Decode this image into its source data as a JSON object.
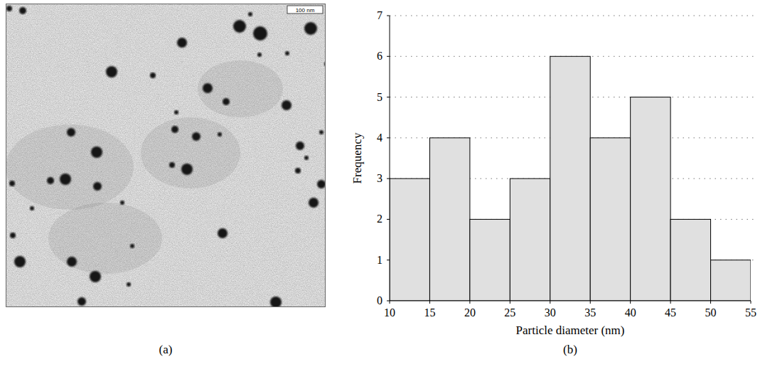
{
  "micrograph": {
    "label": "(a)",
    "scale_bar": "100 nm"
  },
  "chart_data": {
    "type": "histogram",
    "panel_label": "(b)",
    "x_label": "Particle diameter (nm)",
    "y_label": "Frequency",
    "bins": [
      10,
      15,
      20,
      25,
      30,
      35,
      40,
      45,
      50,
      55
    ],
    "values": [
      3,
      4,
      2,
      3,
      6,
      4,
      5,
      2,
      1
    ],
    "color": "#e0e0e0",
    "xlim": [
      10,
      55
    ],
    "xticks": [
      10,
      15,
      20,
      25,
      30,
      35,
      40,
      45,
      50,
      55
    ],
    "ylim": [
      0,
      7
    ],
    "yticks": [
      0,
      1,
      2,
      3,
      4,
      5,
      6,
      7
    ],
    "grid": true
  }
}
